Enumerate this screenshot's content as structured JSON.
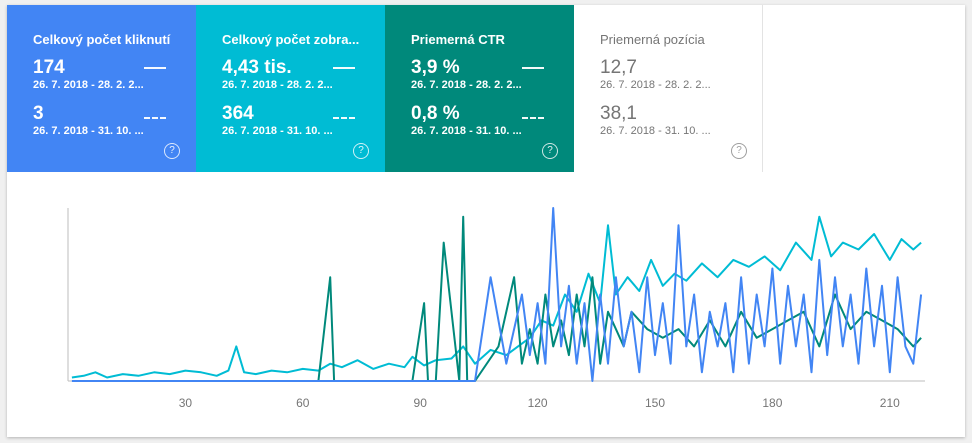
{
  "tiles": [
    {
      "title": "Celkový počet kliknutí",
      "value1": "174",
      "range1": "26. 7. 2018 - 28. 2. 2...",
      "value2": "3",
      "range2": "26. 7. 2018 - 31. 10. ...",
      "help": "?"
    },
    {
      "title": "Celkový počet zobra...",
      "value1": "4,43 tis.",
      "range1": "26. 7. 2018 - 28. 2. 2...",
      "value2": "364",
      "range2": "26. 7. 2018 - 31. 10. ...",
      "help": "?"
    },
    {
      "title": "Priemerná CTR",
      "value1": "3,9 %",
      "range1": "26. 7. 2018 - 28. 2. 2...",
      "value2": "0,8 %",
      "range2": "26. 7. 2018 - 31. 10. ...",
      "help": "?"
    },
    {
      "title": "Priemerná pozícia",
      "value1": "12,7",
      "range1": "26. 7. 2018 - 28. 2. 2...",
      "value2": "38,1",
      "range2": "26. 7. 2018 - 31. 10. ...",
      "help": "?"
    }
  ],
  "colors": {
    "clicks": "#4285f4",
    "impressions": "#00bcd4",
    "ctr": "#00897b",
    "position": "#ffffff"
  },
  "chart_data": {
    "type": "line",
    "xlim": [
      0,
      219
    ],
    "xticks": [
      30,
      60,
      90,
      120,
      150,
      180,
      210
    ],
    "ylim": [
      0,
      1
    ],
    "series": [
      {
        "key": "impressions",
        "x": [
          1,
          4,
          7,
          10,
          14,
          18,
          22,
          26,
          30,
          34,
          38,
          41,
          43,
          45,
          48,
          52,
          56,
          60,
          64,
          67,
          70,
          74,
          78,
          82,
          86,
          88,
          91,
          94,
          98,
          101,
          104,
          108,
          112,
          115,
          118,
          121,
          124,
          127,
          130,
          133,
          136,
          138,
          140,
          143,
          146,
          149,
          152,
          155,
          158,
          162,
          166,
          170,
          174,
          178,
          182,
          186,
          190,
          192,
          195,
          198,
          202,
          206,
          210,
          213,
          216,
          218
        ],
        "values": [
          0.02,
          0.03,
          0.05,
          0.02,
          0.04,
          0.03,
          0.05,
          0.04,
          0.06,
          0.05,
          0.03,
          0.06,
          0.2,
          0.05,
          0.04,
          0.06,
          0.05,
          0.07,
          0.06,
          0.1,
          0.08,
          0.12,
          0.07,
          0.1,
          0.08,
          0.14,
          0.09,
          0.12,
          0.13,
          0.2,
          0.1,
          0.18,
          0.15,
          0.2,
          0.25,
          0.35,
          0.32,
          0.5,
          0.4,
          0.62,
          0.45,
          0.9,
          0.5,
          0.6,
          0.52,
          0.7,
          0.55,
          0.62,
          0.58,
          0.68,
          0.6,
          0.7,
          0.66,
          0.72,
          0.64,
          0.8,
          0.7,
          0.95,
          0.72,
          0.8,
          0.76,
          0.85,
          0.7,
          0.82,
          0.76,
          0.8
        ]
      },
      {
        "key": "ctr",
        "x": [
          60,
          64,
          67,
          68,
          70,
          80,
          88,
          91,
          92,
          94,
          96,
          100,
          101,
          102,
          104,
          110,
          114,
          116,
          118,
          120,
          122,
          124,
          126,
          128,
          130,
          132,
          134,
          136,
          138,
          140,
          142,
          144,
          148,
          152,
          156,
          160,
          164,
          168,
          172,
          176,
          180,
          184,
          188,
          192,
          196,
          200,
          204,
          208,
          212,
          216,
          218
        ],
        "values": [
          0,
          0,
          0.6,
          0,
          0,
          0,
          0,
          0.45,
          0,
          0,
          0.8,
          0,
          0.95,
          0,
          0,
          0.2,
          0.6,
          0.1,
          0.3,
          0.1,
          0.5,
          0.2,
          0.35,
          0.15,
          0.5,
          0.2,
          0.6,
          0.1,
          0.4,
          0.3,
          0.2,
          0.4,
          0.3,
          0.25,
          0.3,
          0.2,
          0.35,
          0.2,
          0.4,
          0.25,
          0.3,
          0.35,
          0.4,
          0.2,
          0.5,
          0.3,
          0.4,
          0.35,
          0.3,
          0.2,
          0.25
        ]
      },
      {
        "key": "clicks",
        "x": [
          1,
          60,
          100,
          104,
          108,
          112,
          116,
          118,
          120,
          122,
          124,
          126,
          128,
          130,
          132,
          134,
          136,
          138,
          140,
          142,
          144,
          146,
          148,
          150,
          152,
          154,
          156,
          158,
          160,
          162,
          164,
          166,
          168,
          170,
          172,
          174,
          176,
          178,
          180,
          182,
          184,
          186,
          188,
          190,
          192,
          194,
          196,
          198,
          200,
          202,
          204,
          206,
          208,
          210,
          212,
          214,
          216,
          218
        ],
        "values": [
          0,
          0,
          0,
          0,
          0.6,
          0.1,
          0.5,
          0.15,
          0.45,
          0.1,
          1.0,
          0.2,
          0.55,
          0.1,
          0.45,
          0,
          0.5,
          0.1,
          0.6,
          0.2,
          0.4,
          0.05,
          0.6,
          0.15,
          0.45,
          0.1,
          0.9,
          0.2,
          0.5,
          0.05,
          0.4,
          0.2,
          0.45,
          0.05,
          0.6,
          0.1,
          0.5,
          0.2,
          0.65,
          0.1,
          0.55,
          0.2,
          0.5,
          0.05,
          0.7,
          0.15,
          0.6,
          0.2,
          0.5,
          0.1,
          0.65,
          0.2,
          0.55,
          0.05,
          0.6,
          0.2,
          0.1,
          0.5
        ]
      }
    ]
  }
}
